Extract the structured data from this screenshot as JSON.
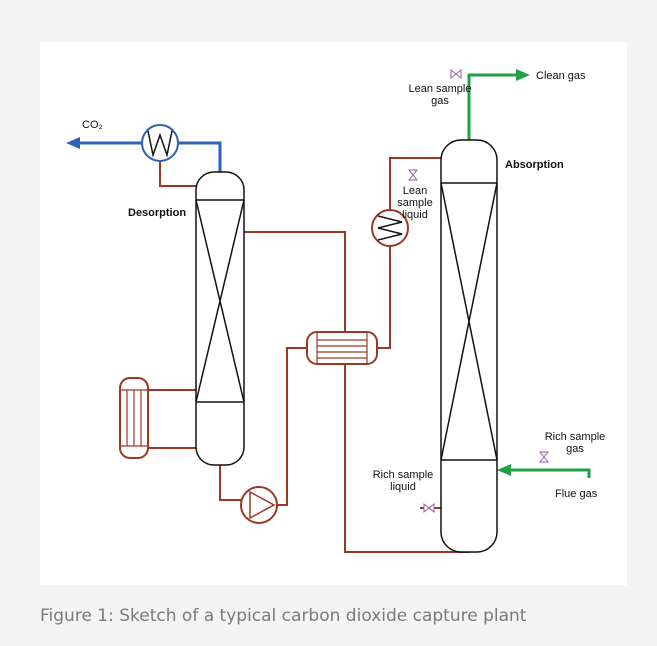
{
  "labels": {
    "co2": "CO₂",
    "desorption": "Desorption",
    "absorption": "Absorption",
    "clean_gas": "Clean gas",
    "flue_gas": "Flue gas",
    "lean_sample_gas": [
      "Lean sample",
      "gas"
    ],
    "lean_sample_liquid": [
      "Lean",
      "sample",
      "liquid"
    ],
    "rich_sample_gas": [
      "Rich sample",
      "gas"
    ],
    "rich_sample_liquid": [
      "Rich sample",
      "liquid"
    ]
  },
  "caption": "Figure 1: Sketch of a typical carbon dioxide capture plant"
}
